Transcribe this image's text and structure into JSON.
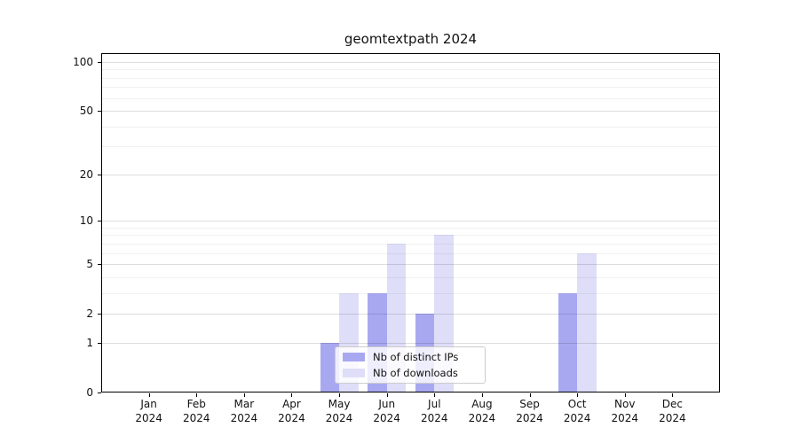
{
  "title": "geomtextpath 2024",
  "colors": {
    "distinct_ips_bar": "#a8a8f1",
    "downloads_bar": "#dedef8",
    "grid_major": "#dcdcdc",
    "grid_minor": "#f0f0f0",
    "axis": "#000000",
    "legend_border": "#cccccc"
  },
  "legend": {
    "items": [
      {
        "label": "Nb of distinct IPs",
        "color": "#a8a8f1"
      },
      {
        "label": "Nb of downloads",
        "color": "#dedef8"
      }
    ],
    "position": "lower center"
  },
  "chart_data": {
    "type": "bar",
    "title": "geomtextpath 2024",
    "categories": [
      {
        "month": "Jan",
        "year": "2024"
      },
      {
        "month": "Feb",
        "year": "2024"
      },
      {
        "month": "Mar",
        "year": "2024"
      },
      {
        "month": "Apr",
        "year": "2024"
      },
      {
        "month": "May",
        "year": "2024"
      },
      {
        "month": "Jun",
        "year": "2024"
      },
      {
        "month": "Jul",
        "year": "2024"
      },
      {
        "month": "Aug",
        "year": "2024"
      },
      {
        "month": "Sep",
        "year": "2024"
      },
      {
        "month": "Oct",
        "year": "2024"
      },
      {
        "month": "Nov",
        "year": "2024"
      },
      {
        "month": "Dec",
        "year": "2024"
      }
    ],
    "series": [
      {
        "name": "Nb of distinct IPs",
        "color": "#a8a8f1",
        "values": [
          0,
          0,
          0,
          0,
          1,
          3,
          2,
          0,
          0,
          3,
          0,
          0
        ]
      },
      {
        "name": "Nb of downloads",
        "color": "#dedef8",
        "values": [
          0,
          0,
          0,
          0,
          3,
          7,
          8,
          0,
          0,
          6,
          0,
          0
        ]
      }
    ],
    "xlabel": "",
    "ylabel": "",
    "y_scale": "log10(1+x)",
    "y_ticks": [
      0,
      1,
      2,
      5,
      10,
      20,
      50,
      100
    ],
    "y_minor_gridlines": [
      3,
      4,
      6,
      7,
      8,
      9,
      30,
      40,
      60,
      70,
      80,
      90
    ],
    "ylim": [
      0,
      113
    ],
    "grid": true,
    "legend_position": "lower center"
  }
}
